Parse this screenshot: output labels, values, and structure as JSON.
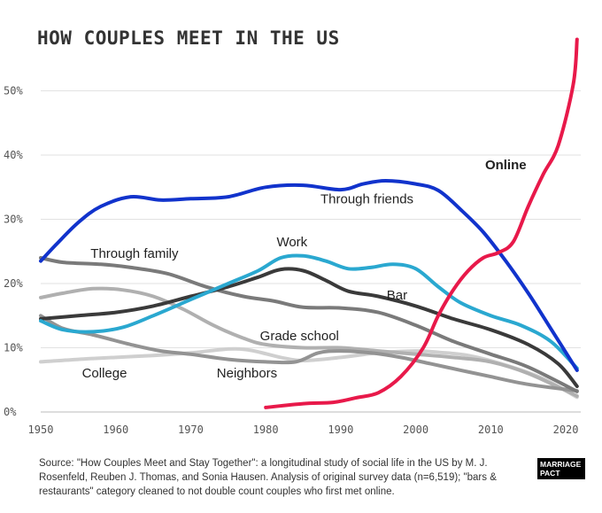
{
  "chart_data": {
    "type": "line",
    "title": "HOW COUPLES MEET IN THE US",
    "x_ticks": [
      1950,
      1960,
      1970,
      1980,
      1990,
      2000,
      2010,
      2020
    ],
    "y_ticks": [
      "0%",
      "10%",
      "20%",
      "30%",
      "40%",
      "50%"
    ],
    "xlim": [
      1950,
      2022
    ],
    "ylim": [
      0,
      58
    ],
    "grid": true,
    "series": [
      {
        "name": "Online",
        "label_bold": true,
        "color": "#e8194a",
        "points": [
          [
            1980,
            0.7
          ],
          [
            1985,
            1.3
          ],
          [
            1989,
            1.5
          ],
          [
            1992,
            2.2
          ],
          [
            1995,
            3.0
          ],
          [
            1998,
            5.5
          ],
          [
            2001,
            10
          ],
          [
            2003,
            15
          ],
          [
            2005,
            19
          ],
          [
            2007,
            22
          ],
          [
            2009,
            24
          ],
          [
            2011,
            24.8
          ],
          [
            2013,
            26.5
          ],
          [
            2015,
            32
          ],
          [
            2017,
            37
          ],
          [
            2019,
            41.5
          ],
          [
            2021,
            51
          ],
          [
            2021.5,
            58
          ]
        ]
      },
      {
        "name": "Through friends",
        "color": "#1133cc",
        "points": [
          [
            1950,
            23.5
          ],
          [
            1952,
            26
          ],
          [
            1955,
            29.5
          ],
          [
            1958,
            32
          ],
          [
            1962,
            33.5
          ],
          [
            1966,
            33
          ],
          [
            1970,
            33.2
          ],
          [
            1975,
            33.5
          ],
          [
            1980,
            35
          ],
          [
            1985,
            35.3
          ],
          [
            1990,
            34.6
          ],
          [
            1993,
            35.5
          ],
          [
            1996,
            36
          ],
          [
            2000,
            35.5
          ],
          [
            2003,
            34.5
          ],
          [
            2006,
            31.5
          ],
          [
            2009,
            28
          ],
          [
            2012,
            23.5
          ],
          [
            2015,
            18.5
          ],
          [
            2018,
            13
          ],
          [
            2021.5,
            6.5
          ]
        ]
      },
      {
        "name": "Through family",
        "color": "#7a7a7a",
        "points": [
          [
            1950,
            24
          ],
          [
            1953,
            23.3
          ],
          [
            1958,
            23
          ],
          [
            1962,
            22.5
          ],
          [
            1967,
            21.5
          ],
          [
            1972,
            19.5
          ],
          [
            1977,
            18
          ],
          [
            1981,
            17.3
          ],
          [
            1985,
            16.3
          ],
          [
            1990,
            16.2
          ],
          [
            1995,
            15.5
          ],
          [
            2000,
            13.5
          ],
          [
            2005,
            11
          ],
          [
            2010,
            9
          ],
          [
            2015,
            7
          ],
          [
            2021.5,
            3.2
          ]
        ]
      },
      {
        "name": "Work",
        "color": "#2aa8d0",
        "points": [
          [
            1950,
            14.2
          ],
          [
            1953,
            12.8
          ],
          [
            1957,
            12.5
          ],
          [
            1961,
            13.2
          ],
          [
            1965,
            15
          ],
          [
            1970,
            17.5
          ],
          [
            1975,
            20
          ],
          [
            1979,
            22
          ],
          [
            1982,
            24
          ],
          [
            1985,
            24.3
          ],
          [
            1988,
            23.5
          ],
          [
            1991,
            22.3
          ],
          [
            1994,
            22.5
          ],
          [
            1997,
            23
          ],
          [
            2000,
            22.3
          ],
          [
            2003,
            19.5
          ],
          [
            2006,
            17
          ],
          [
            2010,
            15
          ],
          [
            2014,
            13.5
          ],
          [
            2018,
            11
          ],
          [
            2021.5,
            6.8
          ]
        ]
      },
      {
        "name": "Bar",
        "color": "#3a3a3a",
        "points": [
          [
            1950,
            14.5
          ],
          [
            1955,
            15
          ],
          [
            1960,
            15.5
          ],
          [
            1965,
            16.5
          ],
          [
            1970,
            18
          ],
          [
            1975,
            19.5
          ],
          [
            1979,
            21
          ],
          [
            1982,
            22.2
          ],
          [
            1985,
            22
          ],
          [
            1988,
            20.5
          ],
          [
            1991,
            18.8
          ],
          [
            1995,
            18
          ],
          [
            2000,
            16.5
          ],
          [
            2005,
            14.5
          ],
          [
            2010,
            12.8
          ],
          [
            2015,
            10.5
          ],
          [
            2019,
            7.5
          ],
          [
            2021.5,
            4
          ]
        ]
      },
      {
        "name": "Grade school",
        "color": "#b0b0b0",
        "points": [
          [
            1950,
            17.8
          ],
          [
            1953,
            18.5
          ],
          [
            1957,
            19.2
          ],
          [
            1961,
            19
          ],
          [
            1965,
            18
          ],
          [
            1969,
            16
          ],
          [
            1973,
            13.5
          ],
          [
            1977,
            11.5
          ],
          [
            1980,
            10.5
          ],
          [
            1985,
            10
          ],
          [
            1990,
            10
          ],
          [
            1995,
            9.5
          ],
          [
            2000,
            9
          ],
          [
            2005,
            8.5
          ],
          [
            2010,
            7.8
          ],
          [
            2015,
            6
          ],
          [
            2021.5,
            2.5
          ]
        ]
      },
      {
        "name": "College",
        "color": "#cfcfcf",
        "points": [
          [
            1950,
            7.8
          ],
          [
            1955,
            8.2
          ],
          [
            1960,
            8.5
          ],
          [
            1965,
            8.8
          ],
          [
            1970,
            9.2
          ],
          [
            1975,
            9.8
          ],
          [
            1978,
            9.6
          ],
          [
            1982,
            8.5
          ],
          [
            1985,
            8
          ],
          [
            1990,
            8.5
          ],
          [
            1995,
            9.2
          ],
          [
            2000,
            9.5
          ],
          [
            2003,
            9.3
          ],
          [
            2007,
            8.8
          ],
          [
            2012,
            7.3
          ],
          [
            2017,
            5.2
          ],
          [
            2021.5,
            2.3
          ]
        ]
      },
      {
        "name": "Neighbors",
        "color": "#939393",
        "points": [
          [
            1950,
            15
          ],
          [
            1953,
            13
          ],
          [
            1957,
            12
          ],
          [
            1962,
            10.5
          ],
          [
            1966,
            9.5
          ],
          [
            1970,
            9
          ],
          [
            1975,
            8.2
          ],
          [
            1980,
            7.8
          ],
          [
            1984,
            7.8
          ],
          [
            1987,
            9.2
          ],
          [
            1990,
            9.5
          ],
          [
            1994,
            9.2
          ],
          [
            1998,
            8.5
          ],
          [
            2002,
            7.5
          ],
          [
            2006,
            6.5
          ],
          [
            2010,
            5.5
          ],
          [
            2015,
            4.3
          ],
          [
            2021.5,
            3.3
          ]
        ]
      }
    ],
    "source": "Source: \"How Couples Meet and Stay Together\": a longitudinal study of social life in the US by M. J. Rosenfeld, Reuben J. Thomas, and Sonia Hausen. Analysis of original survey data (n=6,519); \"bars & restaurants\" category cleaned to not double count couples who first met online.",
    "logo_text": "MARRIAGE PACT"
  }
}
